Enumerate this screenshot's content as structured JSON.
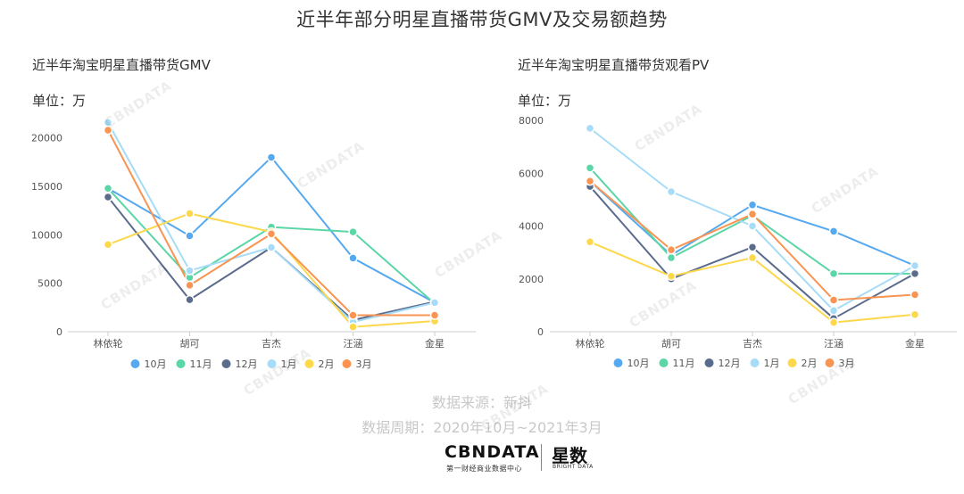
{
  "main_title": "近半年部分明星直播带货GMV及交易额趋势",
  "left_chart": {
    "title": "近半年淘宝明星直播带货GMV",
    "unit": "单位：万"
  },
  "right_chart": {
    "title": "近半年淘宝明星直播带货观看PV",
    "unit": "单位：万"
  },
  "source": "数据来源：新抖",
  "period": "数据周期：2020年10月~2021年3月",
  "logo": {
    "cbn_text": "CBNDATA",
    "cbn_sub": "第一财经商业数据中心",
    "xingshu_text": "星数",
    "xingshu_sub": "BRIGHT DATA"
  },
  "watermark_text": "CBNDATA",
  "colors": {
    "series": [
      "#56a9ef",
      "#5bd6a6",
      "#5a6b8c",
      "#a6dcf7",
      "#fcd84a",
      "#f99452"
    ],
    "axis": "#cccccc"
  },
  "chart_data": [
    {
      "type": "line",
      "title": "近半年淘宝明星直播带货GMV",
      "categories": [
        "林依轮",
        "胡可",
        "吉杰",
        "汪涵",
        "金星"
      ],
      "ylim": [
        0,
        22000
      ],
      "yticks": [
        0,
        5000,
        10000,
        15000,
        20000
      ],
      "legend": "bottom",
      "grid": false,
      "series": [
        {
          "name": "10月",
          "values": [
            14800,
            9900,
            18000,
            7600,
            3000
          ]
        },
        {
          "name": "11月",
          "values": [
            14800,
            5600,
            10800,
            10300,
            2900
          ]
        },
        {
          "name": "12月",
          "values": [
            13900,
            3300,
            8700,
            1200,
            3100
          ]
        },
        {
          "name": "1月",
          "values": [
            21600,
            6300,
            8700,
            1000,
            3000
          ]
        },
        {
          "name": "2月",
          "values": [
            9000,
            12200,
            10300,
            500,
            1100
          ]
        },
        {
          "name": "3月",
          "values": [
            20800,
            4800,
            10100,
            1700,
            1700
          ]
        }
      ]
    },
    {
      "type": "line",
      "title": "近半年淘宝明星直播带货观看PV",
      "categories": [
        "林依轮",
        "胡可",
        "吉杰",
        "汪涵",
        "金星"
      ],
      "ylim": [
        0,
        8000
      ],
      "yticks": [
        0,
        2000,
        4000,
        6000,
        8000
      ],
      "legend": "bottom",
      "grid": false,
      "series": [
        {
          "name": "10月",
          "values": [
            5700,
            2900,
            4800,
            3800,
            2500
          ]
        },
        {
          "name": "11月",
          "values": [
            6200,
            2800,
            4400,
            2200,
            2200
          ]
        },
        {
          "name": "12月",
          "values": [
            5500,
            2000,
            3200,
            500,
            2200
          ]
        },
        {
          "name": "1月",
          "values": [
            7700,
            5300,
            4000,
            800,
            2500
          ]
        },
        {
          "name": "2月",
          "values": [
            3400,
            2100,
            2800,
            350,
            650
          ]
        },
        {
          "name": "3月",
          "values": [
            5700,
            3100,
            4450,
            1200,
            1400
          ]
        }
      ]
    }
  ]
}
